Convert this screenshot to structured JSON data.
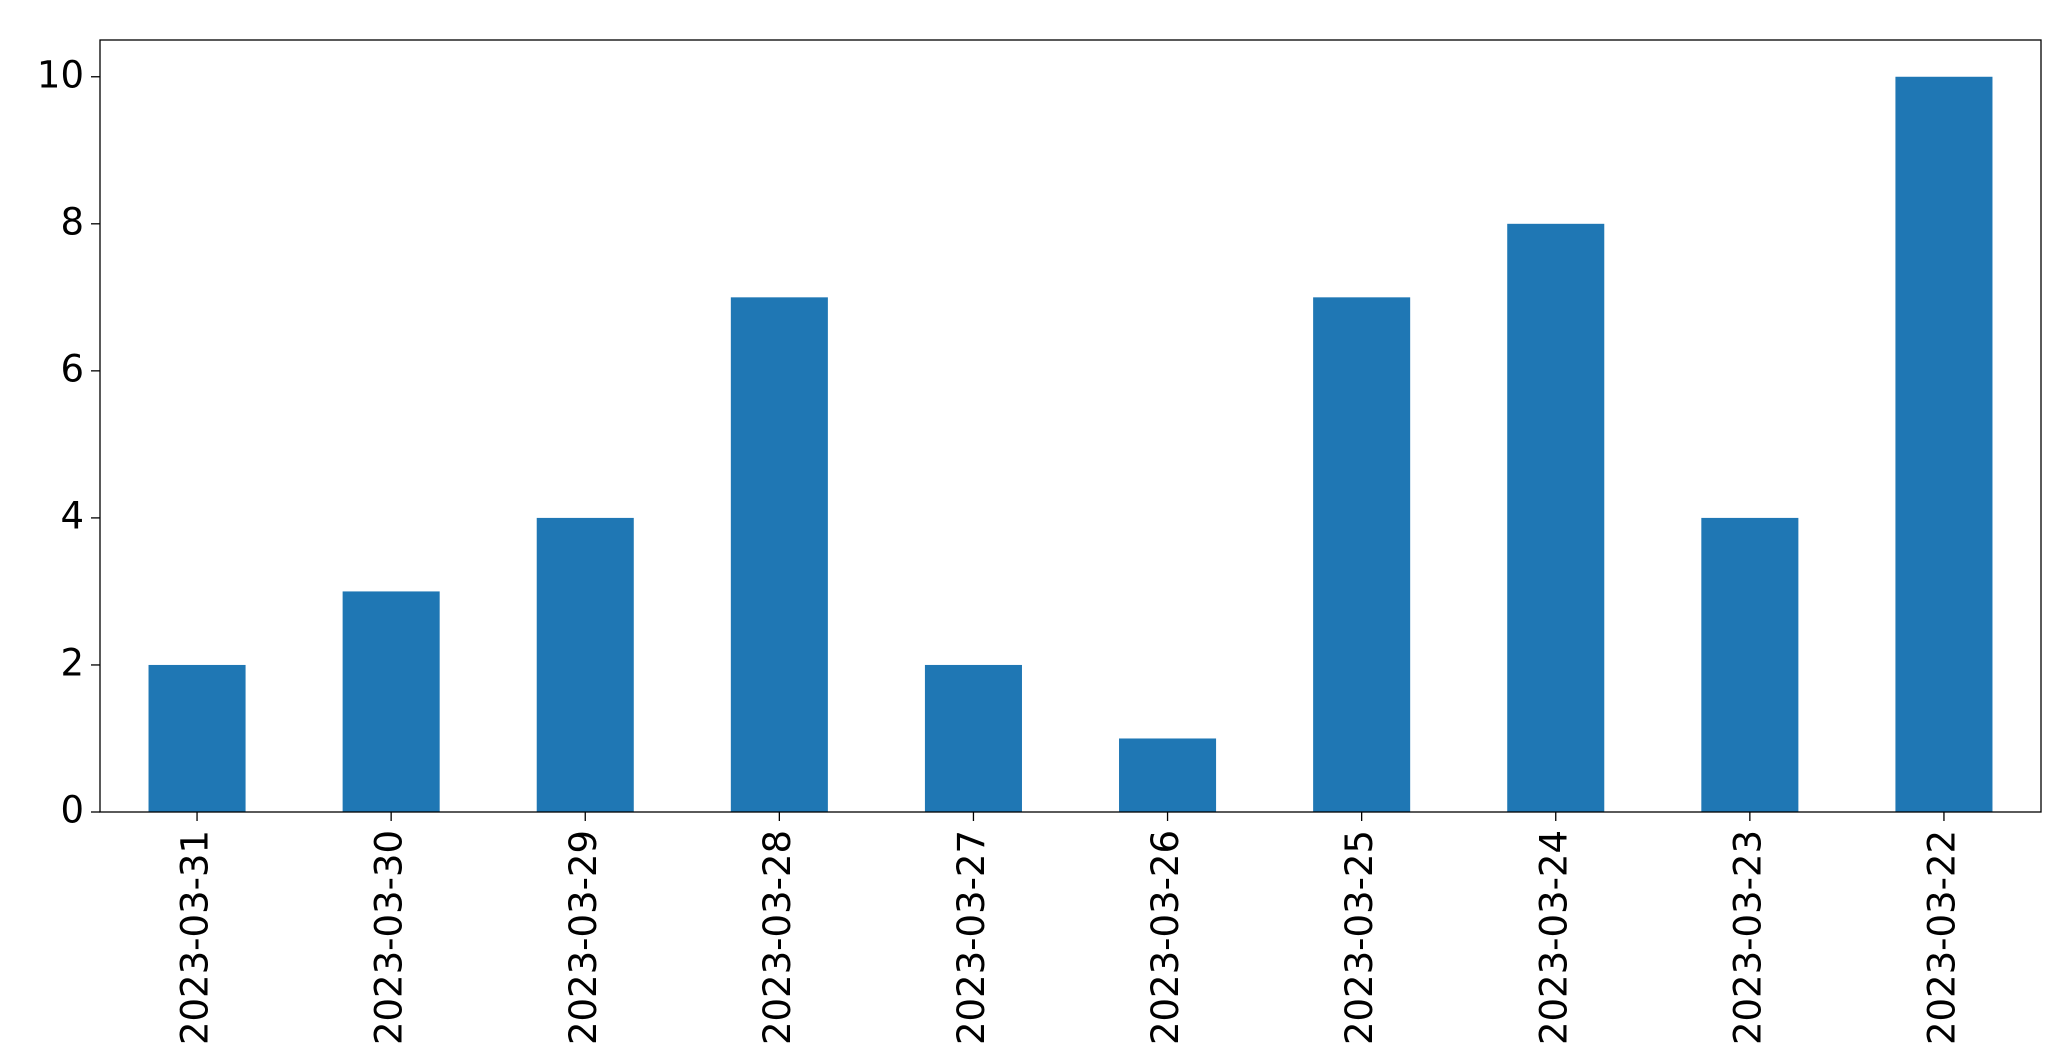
{
  "chart_data": {
    "type": "bar",
    "categories": [
      "2023-03-31",
      "2023-03-30",
      "2023-03-29",
      "2023-03-28",
      "2023-03-27",
      "2023-03-26",
      "2023-03-25",
      "2023-03-24",
      "2023-03-23",
      "2023-03-22"
    ],
    "values": [
      2,
      3,
      4,
      7,
      2,
      1,
      7,
      8,
      4,
      10
    ],
    "color": "#1f77b4",
    "ylim": [
      0,
      10.5
    ],
    "yticks": [
      0,
      2,
      4,
      6,
      8,
      10
    ],
    "grid": false
  }
}
